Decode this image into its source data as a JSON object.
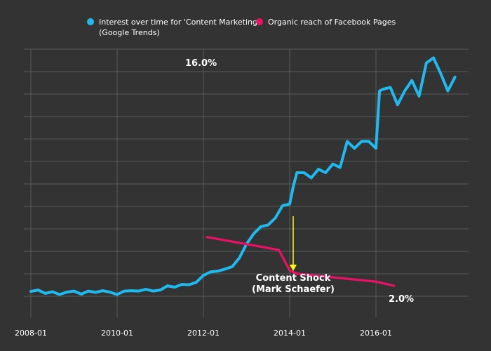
{
  "chart_data": {
    "type": "line",
    "title": "",
    "xlabel": "",
    "ylabel": "",
    "x_tick_labels": [
      "2008-01",
      "2010-01",
      "2012-01",
      "2014-01",
      "2016-01"
    ],
    "grid": true,
    "legend_placement": "top-center",
    "series": [
      {
        "name": "Interest over time for 'Content Marketing' (Google Trends)",
        "legend_lines": [
          "Interest over time for 'Content Marketing'",
          "(Google Trends)"
        ],
        "color": "#1ebbf0",
        "points": [
          [
            "2008-01",
            0.4
          ],
          [
            "2008-03",
            0.8
          ],
          [
            "2008-05",
            -0.2
          ],
          [
            "2008-07",
            0.3
          ],
          [
            "2008-09",
            -0.5
          ],
          [
            "2008-11",
            0.2
          ],
          [
            "2009-01",
            0.5
          ],
          [
            "2009-03",
            -0.4
          ],
          [
            "2009-05",
            0.5
          ],
          [
            "2009-07",
            0.1
          ],
          [
            "2009-09",
            0.6
          ],
          [
            "2009-11",
            0.2
          ],
          [
            "2010-01",
            -0.5
          ],
          [
            "2010-03",
            0.5
          ],
          [
            "2010-05",
            0.6
          ],
          [
            "2010-07",
            0.5
          ],
          [
            "2010-09",
            1.0
          ],
          [
            "2010-11",
            0.5
          ],
          [
            "2011-01",
            0.8
          ],
          [
            "2011-03",
            2.0
          ],
          [
            "2011-05",
            1.6
          ],
          [
            "2011-07",
            2.4
          ],
          [
            "2011-09",
            2.3
          ],
          [
            "2011-11",
            3.0
          ],
          [
            "2012-01",
            5.0
          ],
          [
            "2012-03",
            6.0
          ],
          [
            "2012-05",
            6.2
          ],
          [
            "2012-07",
            6.8
          ],
          [
            "2012-09",
            7.5
          ],
          [
            "2012-11",
            10.0
          ],
          [
            "2013-01",
            14.0
          ],
          [
            "2013-03",
            17.0
          ],
          [
            "2013-05",
            19.0
          ],
          [
            "2013-07",
            19.5
          ],
          [
            "2013-09",
            21.5
          ],
          [
            "2013-11",
            25.0
          ],
          [
            "2014-01",
            25.5
          ],
          [
            "2014-02",
            30.5
          ],
          [
            "2014-03",
            34.5
          ],
          [
            "2014-05",
            34.5
          ],
          [
            "2014-07",
            33.0
          ],
          [
            "2014-09",
            35.5
          ],
          [
            "2014-11",
            34.5
          ],
          [
            "2015-01",
            37.0
          ],
          [
            "2015-03",
            36.0
          ],
          [
            "2015-05",
            43.5
          ],
          [
            "2015-07",
            41.5
          ],
          [
            "2015-09",
            43.5
          ],
          [
            "2015-11",
            43.5
          ],
          [
            "2016-01",
            41.5
          ],
          [
            "2016-02",
            58.0
          ],
          [
            "2016-03",
            58.5
          ],
          [
            "2016-05",
            59.0
          ],
          [
            "2016-07",
            54.0
          ],
          [
            "2016-09",
            58.0
          ],
          [
            "2016-11",
            61.0
          ],
          [
            "2017-01",
            56.5
          ],
          [
            "2017-03",
            66.0
          ],
          [
            "2017-05",
            67.5
          ],
          [
            "2017-07",
            63.0
          ],
          [
            "2017-09",
            58.0
          ],
          [
            "2017-11",
            62.0
          ]
        ]
      },
      {
        "name": "Organic reach of Facebook Pages",
        "legend_lines": [
          "Organic reach of Facebook Pages"
        ],
        "color": "#ee1066",
        "points": [
          [
            "2012-02",
            16.0
          ],
          [
            "2013-10",
            12.3
          ],
          [
            "2014-01",
            6.4
          ],
          [
            "2014-03",
            5.5
          ],
          [
            "2016-01",
            3.2
          ],
          [
            "2016-06",
            2.0
          ]
        ],
        "labels": [
          "16.0%",
          "2.0%"
        ]
      }
    ],
    "annotations": [
      {
        "text": "Content Shock\n(Mark Schaefer)",
        "x": "2014-01",
        "color": "#ffff00"
      }
    ]
  }
}
